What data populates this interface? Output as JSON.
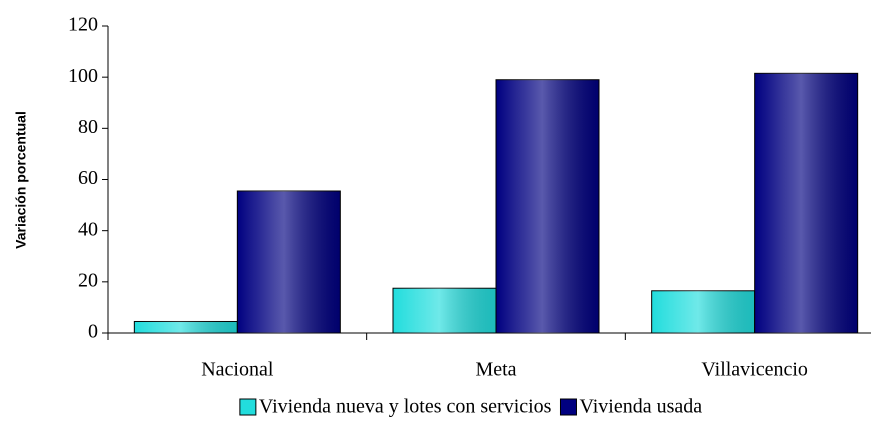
{
  "chart_data": {
    "type": "bar",
    "y_label": "Variación porcentual",
    "categories": [
      "Nacional",
      "Meta",
      "Villavicencio"
    ],
    "series": [
      {
        "name": "Vivienda nueva y lotes con servicios",
        "color": "#22dddd",
        "values": [
          4.5,
          17.5,
          16.5
        ]
      },
      {
        "name": "Vivienda usada",
        "color": "#000080",
        "values": [
          55.5,
          99,
          101.5
        ]
      }
    ],
    "ylim": [
      0,
      120
    ],
    "yticks": [
      0,
      20,
      40,
      60,
      80,
      100,
      120
    ],
    "grid": false,
    "legend": "bottom"
  }
}
